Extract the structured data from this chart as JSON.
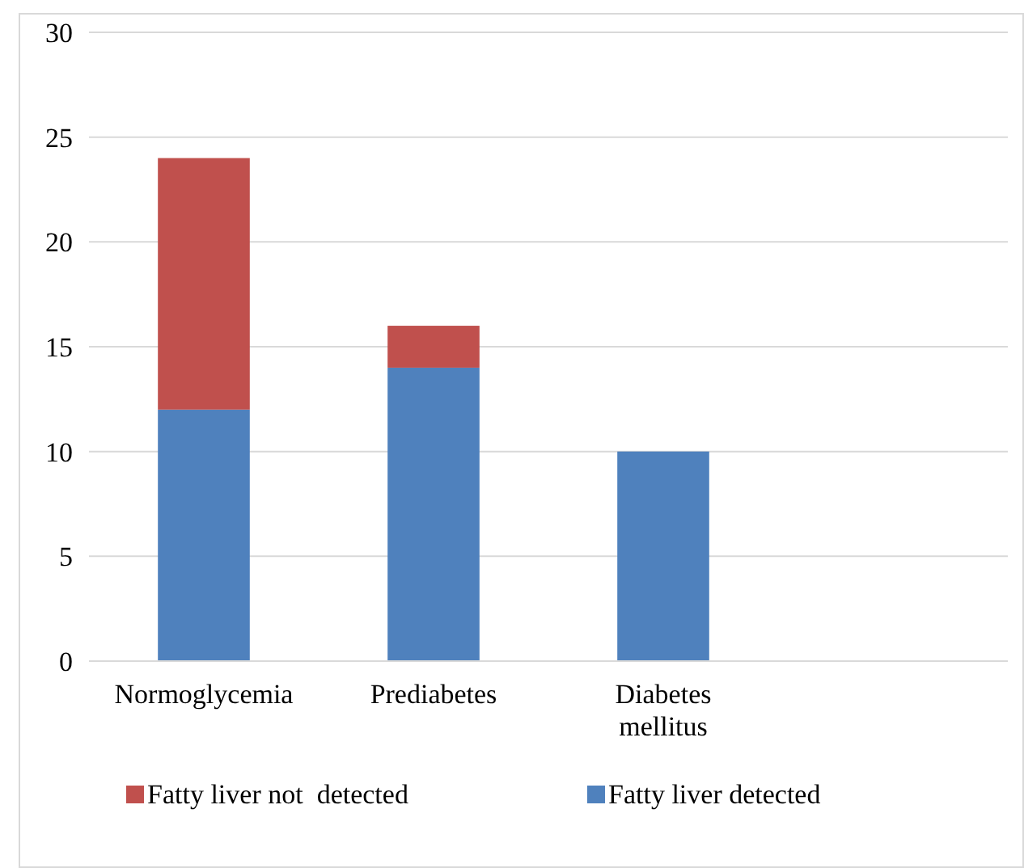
{
  "chart_data": {
    "type": "bar",
    "stacked": true,
    "categories": [
      "Normoglycemia",
      "Prediabetes",
      "Diabetes mellitus",
      null
    ],
    "series": [
      {
        "name": "Fatty liver detected",
        "color": "#4f81bd",
        "values": [
          12,
          14,
          10,
          null
        ]
      },
      {
        "name": "Fatty liver not  detected",
        "color": "#c0504d",
        "values": [
          12,
          2,
          0,
          null
        ]
      }
    ],
    "ylim": [
      0,
      30
    ],
    "yticks": [
      0,
      5,
      10,
      15,
      20,
      25,
      30
    ],
    "grid": "y",
    "legend": "bottom"
  }
}
